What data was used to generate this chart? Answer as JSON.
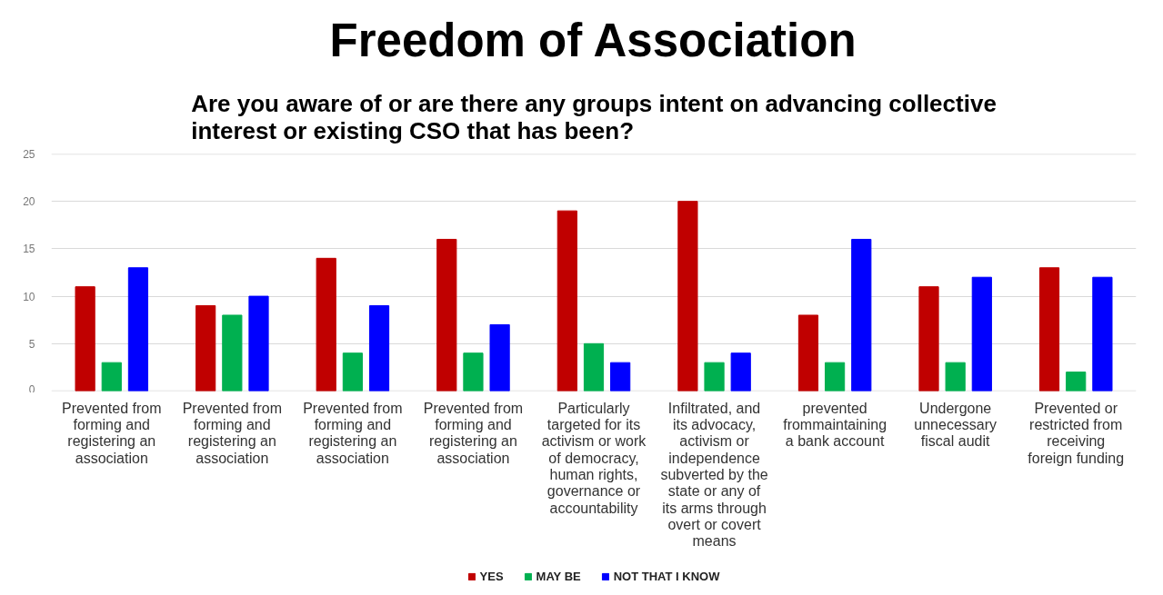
{
  "chart_data": {
    "type": "bar",
    "title": "Freedom of Association",
    "subtitle": "Are you aware of or are there any groups intent on advancing collective interest or existing CSO that has been?",
    "categories": [
      "Prevented from forming and registering an association",
      "Prevented from forming and registering an association",
      "Prevented from forming and registering an association",
      "Prevented from forming and registering an association",
      "Particularly targeted for its activism or work of democracy, human rights, governance or accountability",
      "Infiltrated, and its advocacy, activism or independence subverted by the state or any of its arms through overt or covert means",
      "prevented frommaintaining a bank account",
      "Undergone unnecessary fiscal audit",
      "Prevented or restricted from receiving foreign funding"
    ],
    "series": [
      {
        "name": "YES",
        "color": "#c00000",
        "values": [
          11,
          9,
          14,
          16,
          19,
          20,
          8,
          11,
          13
        ]
      },
      {
        "name": "MAY BE",
        "color": "#00b050",
        "values": [
          3,
          8,
          4,
          4,
          5,
          3,
          3,
          3,
          2
        ]
      },
      {
        "name": "NOT THAT I KNOW",
        "color": "#0000ff",
        "values": [
          13,
          10,
          9,
          7,
          3,
          4,
          16,
          12,
          12
        ]
      }
    ],
    "ylim": [
      0,
      25
    ],
    "yticks": [
      0,
      5,
      10,
      15,
      20,
      25
    ],
    "grid": "y",
    "legend": "bottom"
  }
}
